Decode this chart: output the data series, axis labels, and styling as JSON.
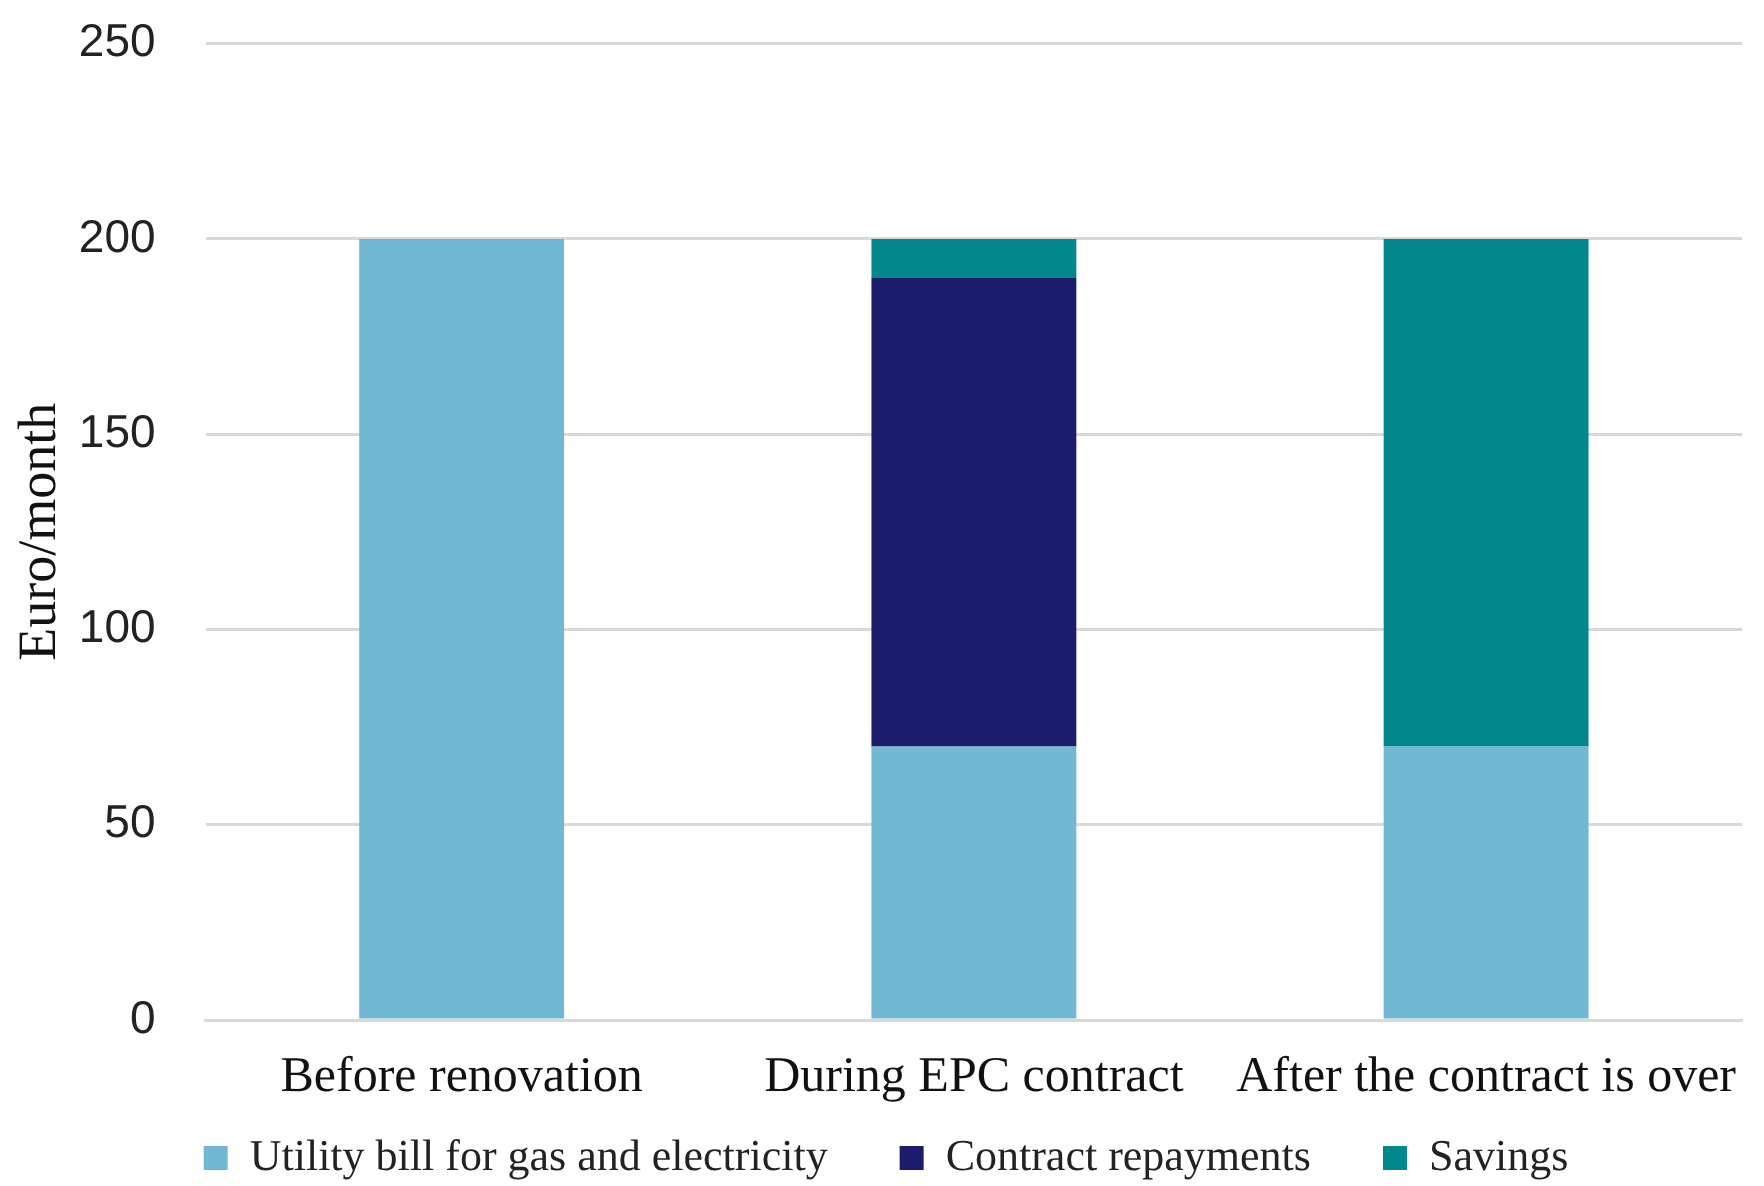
{
  "chart_data": {
    "type": "bar",
    "stacked": true,
    "ylabel": "Euro/month",
    "categories": [
      "Before renovation",
      "During EPC contract",
      "After the contract is over"
    ],
    "series": [
      {
        "name": "Utility bill for gas and electricity",
        "color": "#70b8d4",
        "values": [
          200,
          70,
          70
        ]
      },
      {
        "name": "Contract repayments",
        "color": "#1c1c6c",
        "values": [
          0,
          120,
          0
        ]
      },
      {
        "name": "Savings",
        "color": "#00888c",
        "values": [
          0,
          10,
          130
        ]
      }
    ],
    "ylim": [
      0,
      250
    ],
    "yticks": [
      0,
      50,
      100,
      150,
      200,
      250
    ],
    "grid": "y",
    "legend": "bottom"
  }
}
